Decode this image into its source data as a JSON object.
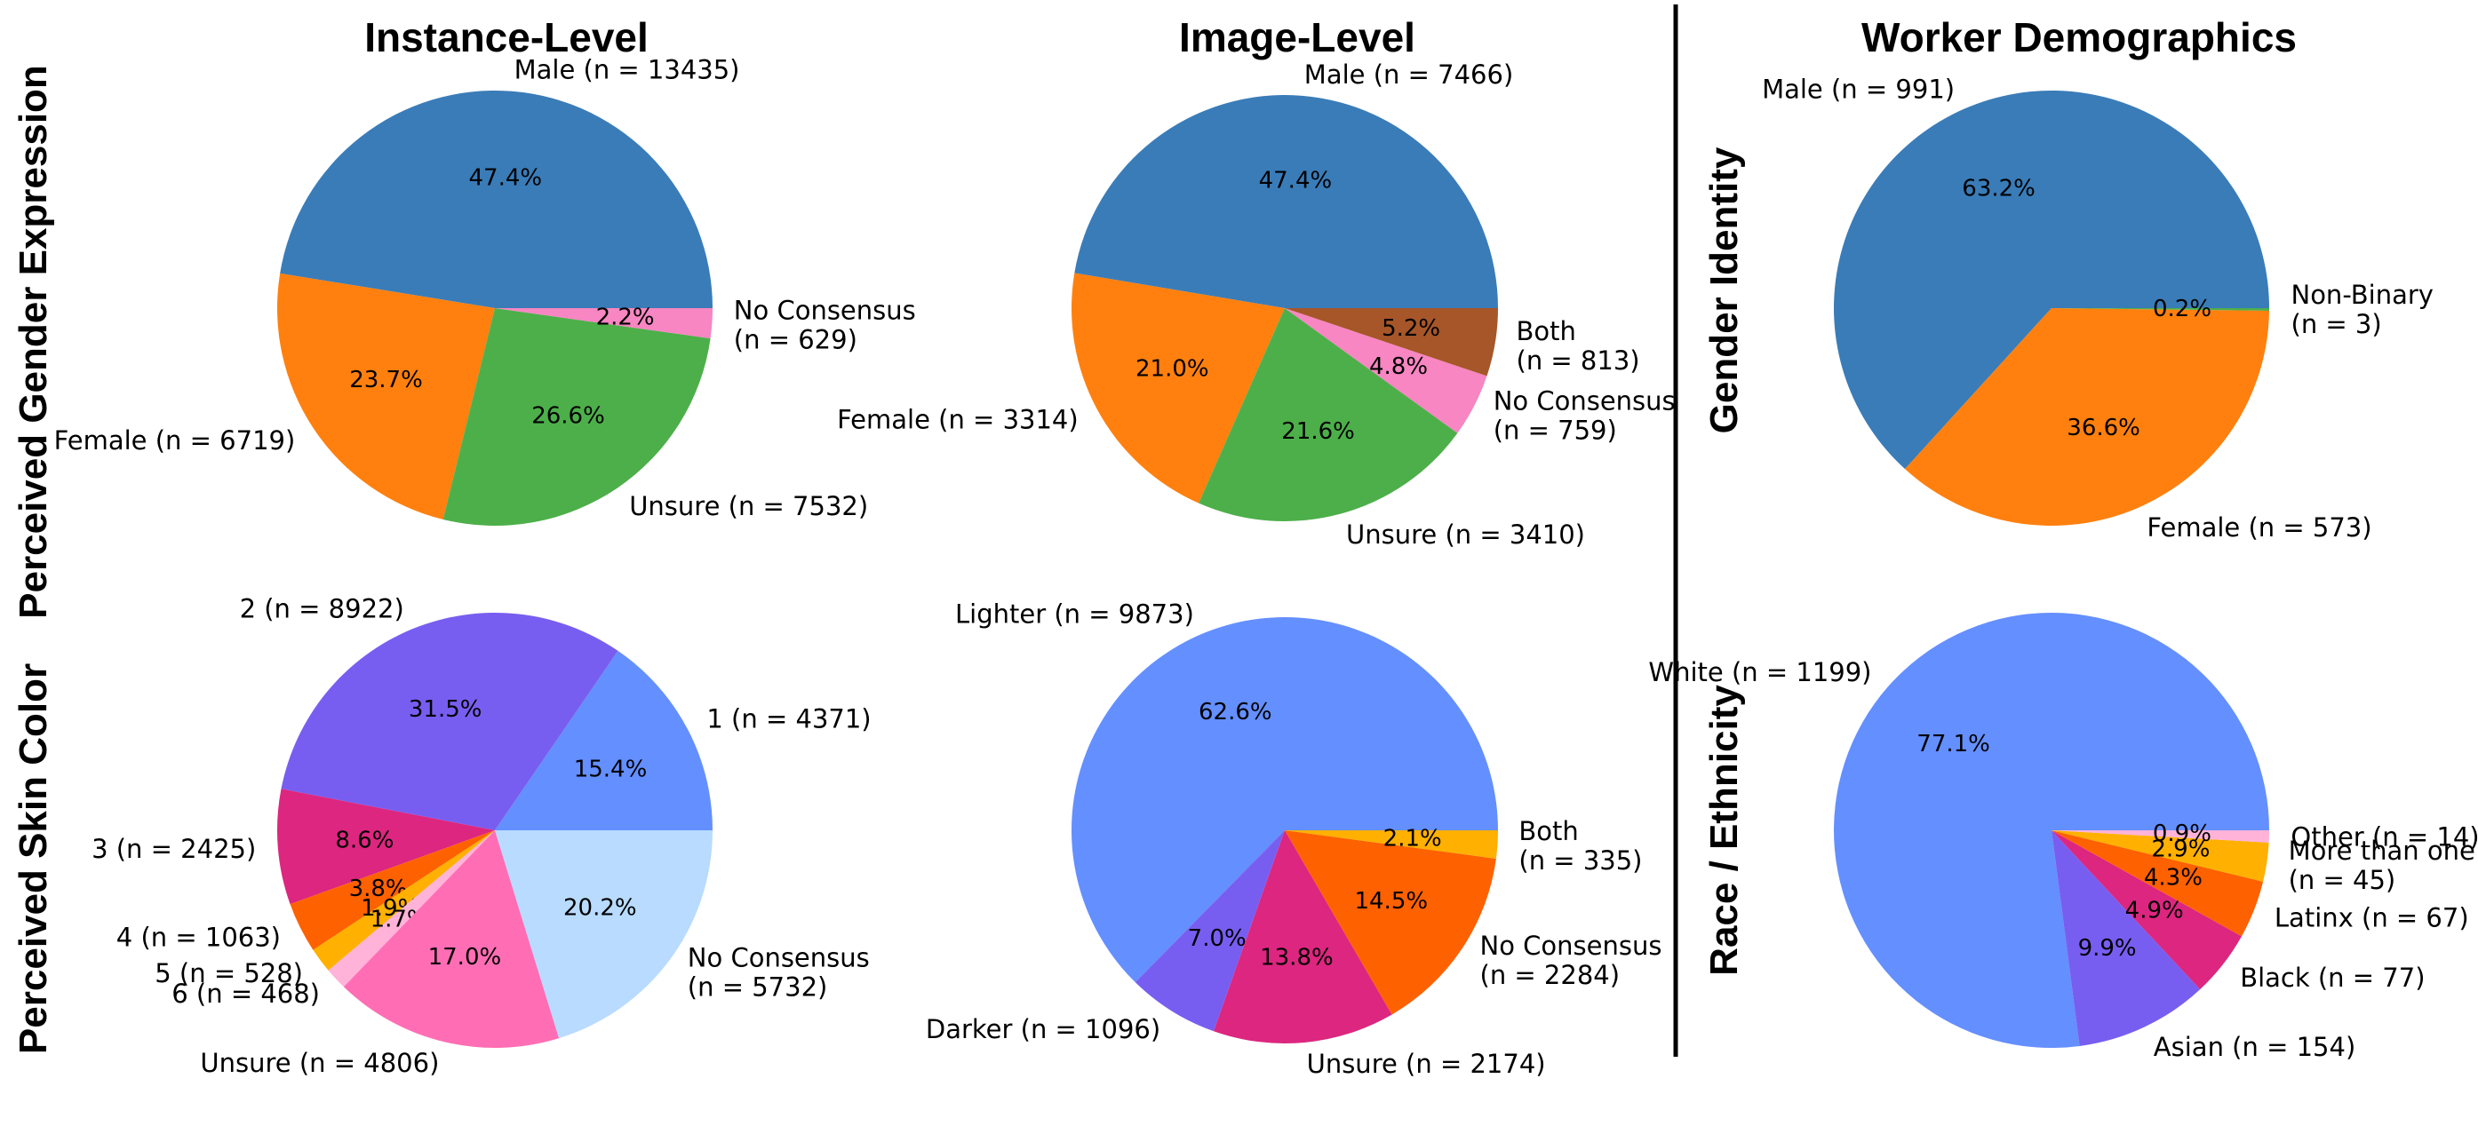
{
  "column_titles": [
    "Instance-Level",
    "Image-Level",
    "Worker Demographics"
  ],
  "row_labels": {
    "gender_left": "Perceived Gender Expression",
    "skin_left": "Perceived Skin Color",
    "gender_right": "Gender Identity",
    "race_right": "Race / Ethnicity"
  },
  "chart_data": [
    {
      "id": "instance_gender",
      "type": "pie",
      "title": "Instance-Level",
      "row": "Perceived Gender Expression",
      "slices": [
        {
          "label": "Male (n = 13435)",
          "value": 13435,
          "pct": "47.4%",
          "color": "#3a7cb8"
        },
        {
          "label": "Female (n = 6719)",
          "value": 6719,
          "pct": "23.7%",
          "color": "#ff800e"
        },
        {
          "label": "Unsure (n = 7532)",
          "value": 7532,
          "pct": "26.6%",
          "color": "#4daf4a"
        },
        {
          "label": "No Consensus\n(n = 629)",
          "value": 629,
          "pct": "2.2%",
          "color": "#f786c2"
        }
      ]
    },
    {
      "id": "image_gender",
      "type": "pie",
      "title": "Image-Level",
      "row": "Perceived Gender Expression",
      "slices": [
        {
          "label": "Male (n = 7466)",
          "value": 7466,
          "pct": "47.4%",
          "color": "#3a7cb8"
        },
        {
          "label": "Female (n = 3314)",
          "value": 3314,
          "pct": "21.0%",
          "color": "#ff800e"
        },
        {
          "label": "Unsure (n = 3410)",
          "value": 3410,
          "pct": "21.6%",
          "color": "#4daf4a"
        },
        {
          "label": "No Consensus\n(n = 759)",
          "value": 759,
          "pct": "4.8%",
          "color": "#f786c2"
        },
        {
          "label": "Both\n(n = 813)",
          "value": 813,
          "pct": "5.2%",
          "color": "#a65628"
        }
      ]
    },
    {
      "id": "worker_gender",
      "type": "pie",
      "title": "Worker Demographics",
      "row": "Gender Identity",
      "slices": [
        {
          "label": "Male (n = 991)",
          "value": 991,
          "pct": "63.2%",
          "color": "#3a7cb8"
        },
        {
          "label": "Female (n = 573)",
          "value": 573,
          "pct": "36.6%",
          "color": "#ff800e"
        },
        {
          "label": "Non-Binary\n(n = 3)",
          "value": 3,
          "pct": "0.2%",
          "color": "#4daf4a"
        }
      ]
    },
    {
      "id": "instance_skin",
      "type": "pie",
      "title": "Instance-Level",
      "row": "Perceived Skin Color",
      "slices": [
        {
          "label": "1 (n = 4371)",
          "value": 4371,
          "pct": "15.4%",
          "color": "#648fff"
        },
        {
          "label": "2 (n = 8922)",
          "value": 8922,
          "pct": "31.5%",
          "color": "#785ef0"
        },
        {
          "label": "3 (n = 2425)",
          "value": 2425,
          "pct": "8.6%",
          "color": "#dc267f"
        },
        {
          "label": "4 (n = 1063)",
          "value": 1063,
          "pct": "3.8%",
          "color": "#fe6100"
        },
        {
          "label": "5 (n = 528)",
          "value": 528,
          "pct": "1.9%",
          "color": "#ffb000"
        },
        {
          "label": "6 (n = 468)",
          "value": 468,
          "pct": "1.7%",
          "color": "#ffb3d9"
        },
        {
          "label": "Unsure (n = 4806)",
          "value": 4806,
          "pct": "17.0%",
          "color": "#ff6eb4"
        },
        {
          "label": "No Consensus\n(n = 5732)",
          "value": 5732,
          "pct": "20.2%",
          "color": "#b8dbff"
        }
      ]
    },
    {
      "id": "image_skin",
      "type": "pie",
      "title": "Image-Level",
      "row": "Perceived Skin Color",
      "slices": [
        {
          "label": "Lighter (n = 9873)",
          "value": 9873,
          "pct": "62.6%",
          "color": "#648fff"
        },
        {
          "label": "Darker (n = 1096)",
          "value": 1096,
          "pct": "7.0%",
          "color": "#785ef0"
        },
        {
          "label": "Unsure (n = 2174)",
          "value": 2174,
          "pct": "13.8%",
          "color": "#dc267f"
        },
        {
          "label": "No Consensus\n(n = 2284)",
          "value": 2284,
          "pct": "14.5%",
          "color": "#fe6100"
        },
        {
          "label": "Both\n(n = 335)",
          "value": 335,
          "pct": "2.1%",
          "color": "#ffb000"
        }
      ]
    },
    {
      "id": "worker_race",
      "type": "pie",
      "title": "Worker Demographics",
      "row": "Race / Ethnicity",
      "slices": [
        {
          "label": "White (n = 1199)",
          "value": 1199,
          "pct": "77.1%",
          "color": "#648fff"
        },
        {
          "label": "Asian (n = 154)",
          "value": 154,
          "pct": "9.9%",
          "color": "#785ef0"
        },
        {
          "label": "Black (n = 77)",
          "value": 77,
          "pct": "4.9%",
          "color": "#dc267f"
        },
        {
          "label": "Latinx (n = 67)",
          "value": 67,
          "pct": "4.3%",
          "color": "#fe6100"
        },
        {
          "label": "More than one\n(n = 45)",
          "value": 45,
          "pct": "2.9%",
          "color": "#ffb000"
        },
        {
          "label": "Other (n = 14)",
          "value": 14,
          "pct": "0.9%",
          "color": "#ffb3d9"
        }
      ]
    }
  ]
}
